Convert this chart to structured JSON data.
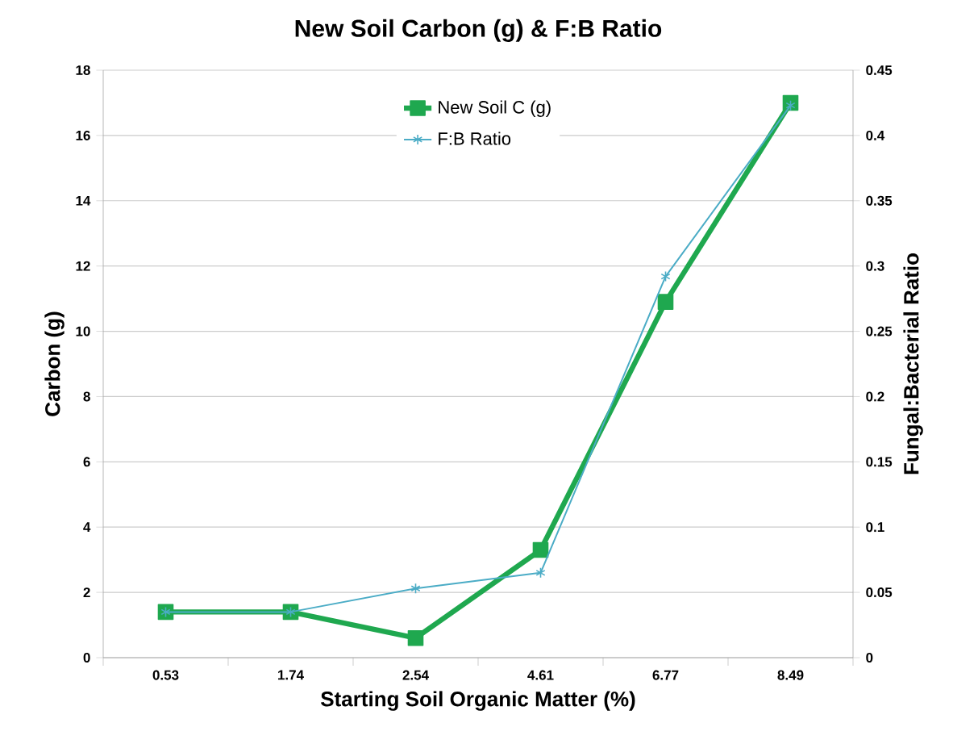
{
  "chart_data": {
    "type": "line",
    "title": "New Soil Carbon (g) & F:B Ratio",
    "xlabel": "Starting Soil Organic Matter (%)",
    "ylabel": "Carbon (g)",
    "y2label": "Fungal:Bacterial Ratio",
    "categories": [
      "0.53",
      "1.74",
      "2.54",
      "4.61",
      "6.77",
      "8.49"
    ],
    "ylim": [
      0,
      18
    ],
    "yticks": [
      0,
      2,
      4,
      6,
      8,
      10,
      12,
      14,
      16,
      18
    ],
    "y2lim": [
      0,
      0.45
    ],
    "y2ticks": [
      0,
      0.05,
      0.1,
      0.15,
      0.2,
      0.25,
      0.3,
      0.35,
      0.4,
      0.45
    ],
    "grid": "y",
    "legend": "top",
    "series": [
      {
        "name": "New Soil C (g)",
        "color": "#1fa84f",
        "marker": "square",
        "values": [
          1.4,
          1.4,
          0.6,
          3.3,
          10.9,
          17.0
        ]
      },
      {
        "name": "F:B Ratio",
        "color": "#4bacc6",
        "marker": "cross",
        "axis": "y2",
        "values": [
          0.035,
          0.035,
          0.053,
          0.065,
          0.292,
          0.423
        ]
      }
    ]
  }
}
